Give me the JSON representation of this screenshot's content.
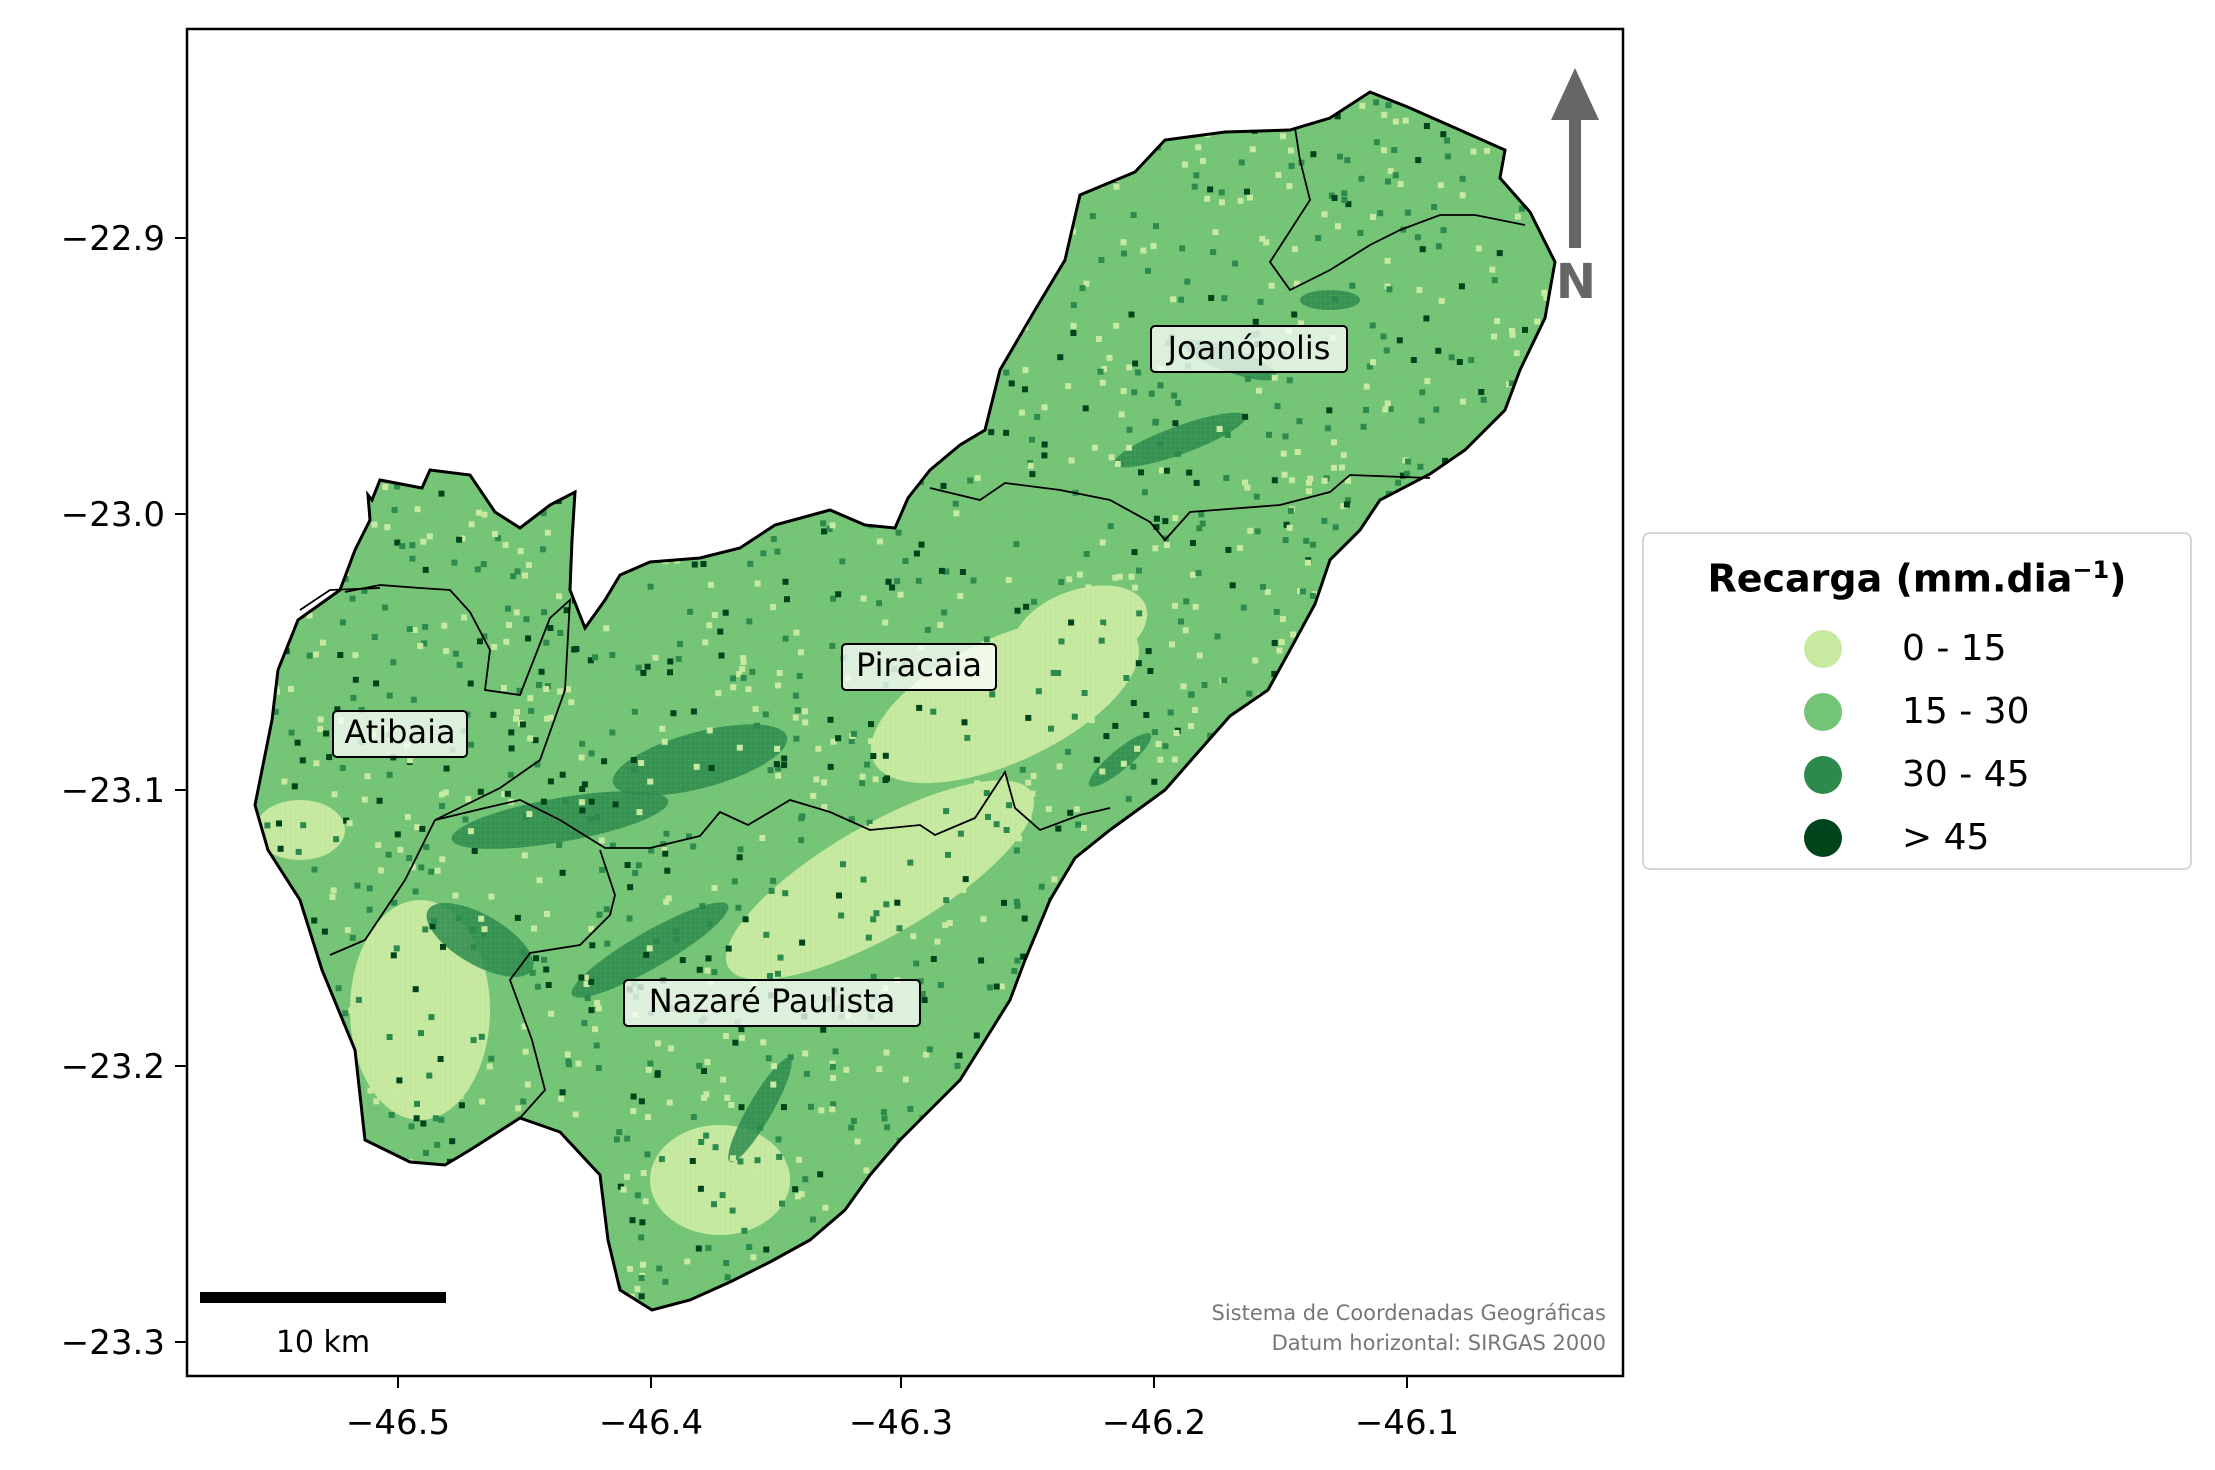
{
  "map": {
    "x_ticks": [
      "−46.5",
      "−46.4",
      "−46.3",
      "−46.2",
      "−46.1"
    ],
    "y_ticks": [
      "−22.9",
      "−23.0",
      "−23.1",
      "−23.2",
      "−23.3"
    ],
    "regions": [
      {
        "name": "Joanópolis"
      },
      {
        "name": "Piracaia"
      },
      {
        "name": "Atibaia"
      },
      {
        "name": "Nazaré Paulista"
      }
    ],
    "north_arrow_label": "N",
    "scale_bar_label": "10 km",
    "crs_line1": "Sistema de Coordenadas Geográficas",
    "crs_line2": "Datum horizontal: SIRGAS 2000",
    "colors": {
      "base": "#74c476",
      "low": "#c7e9a0",
      "mid": "#2c8a4c",
      "high": "#00441b",
      "outline": "#000000"
    }
  },
  "legend": {
    "title": "Recarga (mm.dia",
    "title_sup": "−1",
    "title_close": ")",
    "items": [
      {
        "label": "0 - 15",
        "color": "#c7e9a0"
      },
      {
        "label": "15 - 30",
        "color": "#74c476"
      },
      {
        "label": "30 - 45",
        "color": "#2c8a4c"
      },
      {
        "label": "> 45",
        "color": "#00441b"
      }
    ]
  }
}
